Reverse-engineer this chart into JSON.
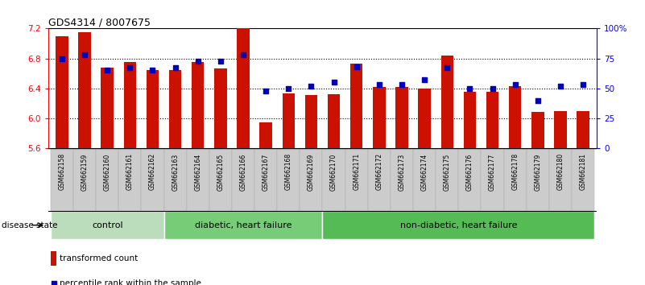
{
  "title": "GDS4314 / 8007675",
  "samples": [
    "GSM662158",
    "GSM662159",
    "GSM662160",
    "GSM662161",
    "GSM662162",
    "GSM662163",
    "GSM662164",
    "GSM662165",
    "GSM662166",
    "GSM662167",
    "GSM662168",
    "GSM662169",
    "GSM662170",
    "GSM662171",
    "GSM662172",
    "GSM662173",
    "GSM662174",
    "GSM662175",
    "GSM662176",
    "GSM662177",
    "GSM662178",
    "GSM662179",
    "GSM662180",
    "GSM662181"
  ],
  "bar_values": [
    7.1,
    7.15,
    6.68,
    6.75,
    6.65,
    6.65,
    6.75,
    6.67,
    7.2,
    5.95,
    6.33,
    6.31,
    6.32,
    6.73,
    6.42,
    6.42,
    6.4,
    6.84,
    6.35,
    6.35,
    6.43,
    6.09,
    6.1,
    6.1
  ],
  "dot_pct": [
    75,
    78,
    65,
    67,
    65,
    67,
    73,
    73,
    78,
    48,
    50,
    52,
    55,
    68,
    53,
    53,
    57,
    67,
    50,
    50,
    53,
    40,
    52,
    53
  ],
  "y_min": 5.6,
  "y_max": 7.2,
  "y_ticks_left": [
    5.6,
    6.0,
    6.4,
    6.8,
    7.2
  ],
  "y_ticks_right": [
    0,
    25,
    50,
    75,
    100
  ],
  "y_labels_right": [
    "0",
    "25",
    "50",
    "75",
    "100%"
  ],
  "bar_color": "#cc1100",
  "dot_color": "#0000bb",
  "grid_dotted_at": [
    6.0,
    6.4,
    6.8
  ],
  "groups": [
    {
      "label": "control",
      "start": 0,
      "end": 4
    },
    {
      "label": "diabetic, heart failure",
      "start": 5,
      "end": 11
    },
    {
      "label": "non-diabetic, heart failure",
      "start": 12,
      "end": 23
    }
  ],
  "group_colors": [
    "#bbddbb",
    "#77cc77",
    "#55bb55"
  ],
  "legend_bar": "transformed count",
  "legend_dot": "percentile rank within the sample",
  "disease_label": "disease state",
  "tick_bg_color": "#cccccc",
  "tick_border_color": "#aaaaaa"
}
